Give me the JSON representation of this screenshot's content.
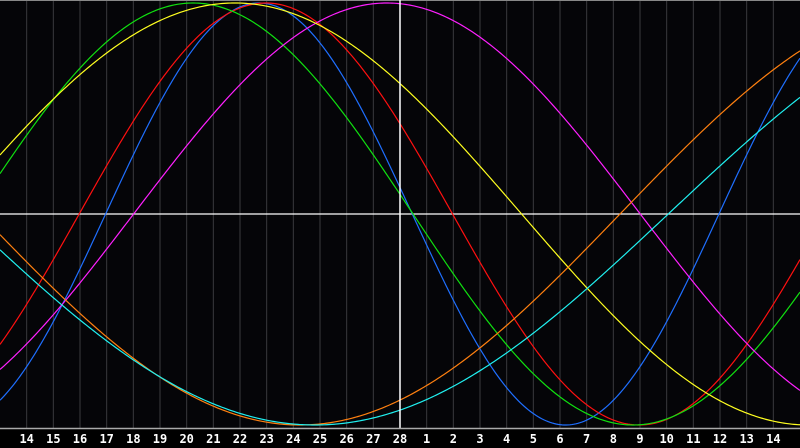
{
  "chart_data": {
    "type": "line",
    "title": "",
    "xlabel": "",
    "ylabel": "",
    "x_ticks": [
      "14",
      "15",
      "16",
      "17",
      "18",
      "19",
      "20",
      "21",
      "22",
      "23",
      "24",
      "25",
      "26",
      "27",
      "28",
      "1",
      "2",
      "3",
      "4",
      "5",
      "6",
      "7",
      "8",
      "9",
      "10",
      "11",
      "12",
      "13",
      "14"
    ],
    "ylim": [
      -100,
      100
    ],
    "grid": "vertical lines at each day",
    "cursor_tick": "28",
    "zero_line": true,
    "background": "#050508",
    "series": [
      {
        "color": "#1f6fff",
        "period_days": 23,
        "peak_at_tick_index": 8.71
      },
      {
        "color": "#ff1010",
        "period_days": 28,
        "peak_at_tick_index": 8.97
      },
      {
        "color": "#10e010",
        "period_days": 33,
        "peak_at_tick_index": 6.24
      },
      {
        "color": "#ff20ff",
        "period_days": 38,
        "peak_at_tick_index": 13.51
      },
      {
        "color": "#ffff20",
        "period_days": 43,
        "peak_at_tick_index": 7.81
      },
      {
        "color": "#ff8010",
        "period_days": 48,
        "peak_at_tick_index": -13.75
      },
      {
        "color": "#20f0f0",
        "period_days": 53,
        "peak_at_tick_index": -15.69
      }
    ]
  }
}
